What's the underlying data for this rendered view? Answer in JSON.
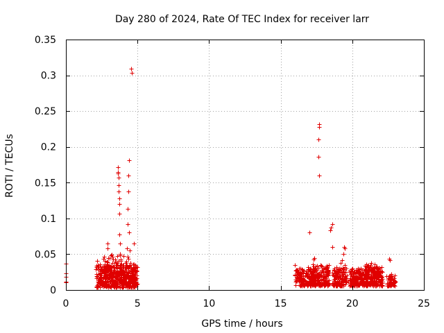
{
  "chart_data": {
    "type": "scatter",
    "title": "Day 280 of 2024, Rate Of TEC Index for receiver larr",
    "xlabel": "GPS time / hours",
    "ylabel": "ROTI / TECUs",
    "xlim": [
      0,
      25
    ],
    "ylim": [
      0,
      0.35
    ],
    "grid": true,
    "marker": "+",
    "color": "#e00000",
    "x_ticks": [
      0,
      5,
      10,
      15,
      20,
      25
    ],
    "x_tick_labels": [
      "0",
      "5",
      "10",
      "15",
      "20",
      "25"
    ],
    "y_ticks": [
      0,
      0.05,
      0.1,
      0.15,
      0.2,
      0.25,
      0.3,
      0.35
    ],
    "y_tick_labels": [
      "0",
      "0.05",
      "0.1",
      "0.15",
      "0.2",
      "0.25",
      "0.3",
      "0.35"
    ],
    "series": [
      {
        "name": "ROTI",
        "points": [
          [
            0.0,
            0.037
          ],
          [
            0.0,
            0.023
          ],
          [
            0.0,
            0.018
          ],
          [
            0.0,
            0.012
          ],
          [
            0.0,
            0.011
          ],
          [
            2.2,
            0.041
          ],
          [
            2.25,
            0.035
          ],
          [
            2.3,
            0.028
          ],
          [
            2.35,
            0.022
          ],
          [
            2.4,
            0.018
          ],
          [
            2.45,
            0.015
          ],
          [
            2.5,
            0.012
          ],
          [
            2.55,
            0.01
          ],
          [
            2.6,
            0.008
          ],
          [
            2.65,
            0.02
          ],
          [
            2.7,
            0.025
          ],
          [
            2.75,
            0.032
          ],
          [
            2.8,
            0.016
          ],
          [
            2.85,
            0.012
          ],
          [
            2.9,
            0.065
          ],
          [
            2.9,
            0.058
          ],
          [
            2.95,
            0.045
          ],
          [
            3.0,
            0.03
          ],
          [
            3.05,
            0.022
          ],
          [
            3.1,
            0.018
          ],
          [
            3.15,
            0.014
          ],
          [
            3.2,
            0.026
          ],
          [
            3.25,
            0.038
          ],
          [
            3.3,
            0.043
          ],
          [
            3.35,
            0.02
          ],
          [
            3.4,
            0.015
          ],
          [
            3.45,
            0.011
          ],
          [
            3.5,
            0.009
          ],
          [
            3.55,
            0.017
          ],
          [
            3.6,
            0.024
          ],
          [
            3.65,
            0.165
          ],
          [
            3.65,
            0.172
          ],
          [
            3.65,
            0.163
          ],
          [
            3.7,
            0.157
          ],
          [
            3.7,
            0.146
          ],
          [
            3.7,
            0.138
          ],
          [
            3.72,
            0.128
          ],
          [
            3.72,
            0.12
          ],
          [
            3.75,
            0.107
          ],
          [
            3.75,
            0.078
          ],
          [
            3.78,
            0.065
          ],
          [
            3.8,
            0.05
          ],
          [
            3.82,
            0.035
          ],
          [
            3.85,
            0.025
          ],
          [
            3.9,
            0.018
          ],
          [
            3.95,
            0.012
          ],
          [
            4.0,
            0.01
          ],
          [
            4.05,
            0.015
          ],
          [
            4.1,
            0.022
          ],
          [
            4.15,
            0.03
          ],
          [
            4.2,
            0.04
          ],
          [
            4.25,
            0.058
          ],
          [
            4.3,
            0.092
          ],
          [
            4.32,
            0.113
          ],
          [
            4.35,
            0.138
          ],
          [
            4.35,
            0.16
          ],
          [
            4.4,
            0.181
          ],
          [
            4.42,
            0.08
          ],
          [
            4.45,
            0.055
          ],
          [
            4.5,
            0.035
          ],
          [
            4.55,
            0.309
          ],
          [
            4.6,
            0.303
          ],
          [
            4.6,
            0.02
          ],
          [
            4.65,
            0.012
          ],
          [
            4.7,
            0.01
          ],
          [
            4.75,
            0.065
          ],
          [
            4.75,
            0.032
          ],
          [
            4.8,
            0.018
          ],
          [
            4.85,
            0.025
          ],
          [
            4.9,
            0.012
          ],
          [
            16.0,
            0.035
          ],
          [
            16.1,
            0.028
          ],
          [
            16.2,
            0.022
          ],
          [
            16.3,
            0.018
          ],
          [
            16.4,
            0.013
          ],
          [
            16.5,
            0.01
          ],
          [
            16.6,
            0.015
          ],
          [
            16.7,
            0.02
          ],
          [
            16.8,
            0.026
          ],
          [
            16.9,
            0.032
          ],
          [
            17.0,
            0.08
          ],
          [
            17.1,
            0.025
          ],
          [
            17.2,
            0.018
          ],
          [
            17.3,
            0.043
          ],
          [
            17.35,
            0.045
          ],
          [
            17.4,
            0.03
          ],
          [
            17.5,
            0.022
          ],
          [
            17.6,
            0.015
          ],
          [
            17.7,
            0.232
          ],
          [
            17.7,
            0.228
          ],
          [
            17.65,
            0.21
          ],
          [
            17.65,
            0.186
          ],
          [
            17.7,
            0.16
          ],
          [
            17.75,
            0.012
          ],
          [
            17.8,
            0.02
          ],
          [
            17.9,
            0.028
          ],
          [
            18.0,
            0.018
          ],
          [
            18.1,
            0.012
          ],
          [
            18.2,
            0.02
          ],
          [
            18.3,
            0.028
          ],
          [
            18.45,
            0.083
          ],
          [
            18.5,
            0.087
          ],
          [
            18.6,
            0.092
          ],
          [
            18.6,
            0.06
          ],
          [
            18.7,
            0.015
          ],
          [
            18.8,
            0.01
          ],
          [
            18.9,
            0.018
          ],
          [
            19.0,
            0.025
          ],
          [
            19.1,
            0.03
          ],
          [
            19.2,
            0.038
          ],
          [
            19.3,
            0.042
          ],
          [
            19.4,
            0.05
          ],
          [
            19.45,
            0.06
          ],
          [
            19.5,
            0.058
          ],
          [
            19.5,
            0.035
          ],
          [
            19.6,
            0.02
          ],
          [
            19.7,
            0.012
          ],
          [
            19.8,
            0.015
          ],
          [
            19.9,
            0.022
          ],
          [
            20.0,
            0.03
          ],
          [
            20.1,
            0.025
          ],
          [
            20.2,
            0.018
          ],
          [
            20.3,
            0.012
          ],
          [
            20.4,
            0.016
          ],
          [
            20.5,
            0.024
          ],
          [
            20.6,
            0.02
          ],
          [
            20.7,
            0.014
          ],
          [
            20.8,
            0.028
          ],
          [
            20.9,
            0.034
          ],
          [
            21.0,
            0.036
          ],
          [
            21.1,
            0.022
          ],
          [
            21.2,
            0.016
          ],
          [
            21.3,
            0.038
          ],
          [
            21.4,
            0.03
          ],
          [
            21.5,
            0.025
          ],
          [
            21.6,
            0.018
          ],
          [
            21.7,
            0.012
          ],
          [
            21.8,
            0.03
          ],
          [
            21.9,
            0.024
          ],
          [
            22.0,
            0.015
          ],
          [
            22.1,
            0.01
          ],
          [
            22.6,
            0.044
          ],
          [
            22.65,
            0.042
          ],
          [
            22.7,
            0.022
          ],
          [
            22.75,
            0.018
          ],
          [
            22.8,
            0.014
          ],
          [
            22.85,
            0.01
          ],
          [
            22.9,
            0.016
          ],
          [
            22.95,
            0.02
          ]
        ]
      }
    ],
    "dense_regions": [
      [
        2.1,
        5.0,
        0.004,
        0.036,
        420
      ],
      [
        2.6,
        4.8,
        0.01,
        0.05,
        120
      ],
      [
        16.0,
        17.4,
        0.006,
        0.03,
        160
      ],
      [
        17.2,
        18.4,
        0.006,
        0.036,
        160
      ],
      [
        18.6,
        19.6,
        0.006,
        0.032,
        120
      ],
      [
        19.8,
        21.0,
        0.006,
        0.03,
        160
      ],
      [
        20.9,
        22.1,
        0.006,
        0.036,
        180
      ],
      [
        22.4,
        23.0,
        0.006,
        0.02,
        60
      ]
    ]
  }
}
